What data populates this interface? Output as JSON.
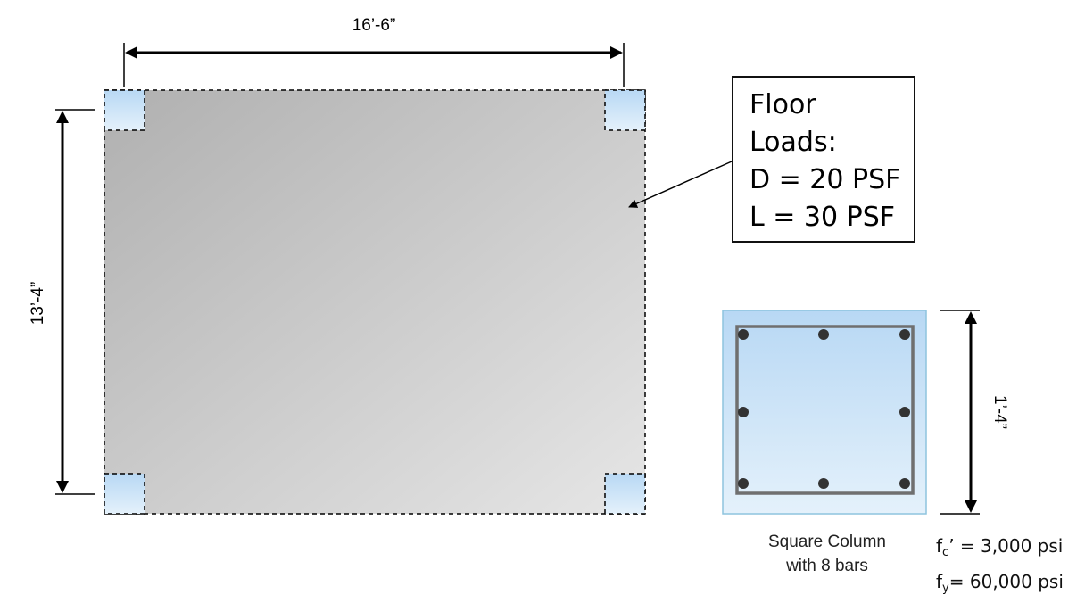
{
  "dimensions": {
    "width_label": "16’-6”",
    "height_label": "13’-4”",
    "column_size_label": "1’-4”"
  },
  "floor_loads": {
    "line1": "Floor",
    "line2": "Loads:",
    "dead_load": "D = 20 PSF",
    "live_load": "L = 30 PSF"
  },
  "column": {
    "caption_line1": "Square Column",
    "caption_line2": "with 8 bars",
    "bar_count": 8
  },
  "materials": {
    "fc_symbol": "f",
    "fc_sub": "c",
    "fc_rest": "’ = 3,000 psi",
    "fy_symbol": "f",
    "fy_sub": "y",
    "fy_rest": "= 60,000 psi"
  },
  "colors": {
    "slab_dark": "#b0b0b0",
    "slab_light": "#e6e6e6",
    "column_top": "#b8d8f4",
    "column_bottom": "#e4f1fb",
    "column_border": "#8ec4de"
  }
}
